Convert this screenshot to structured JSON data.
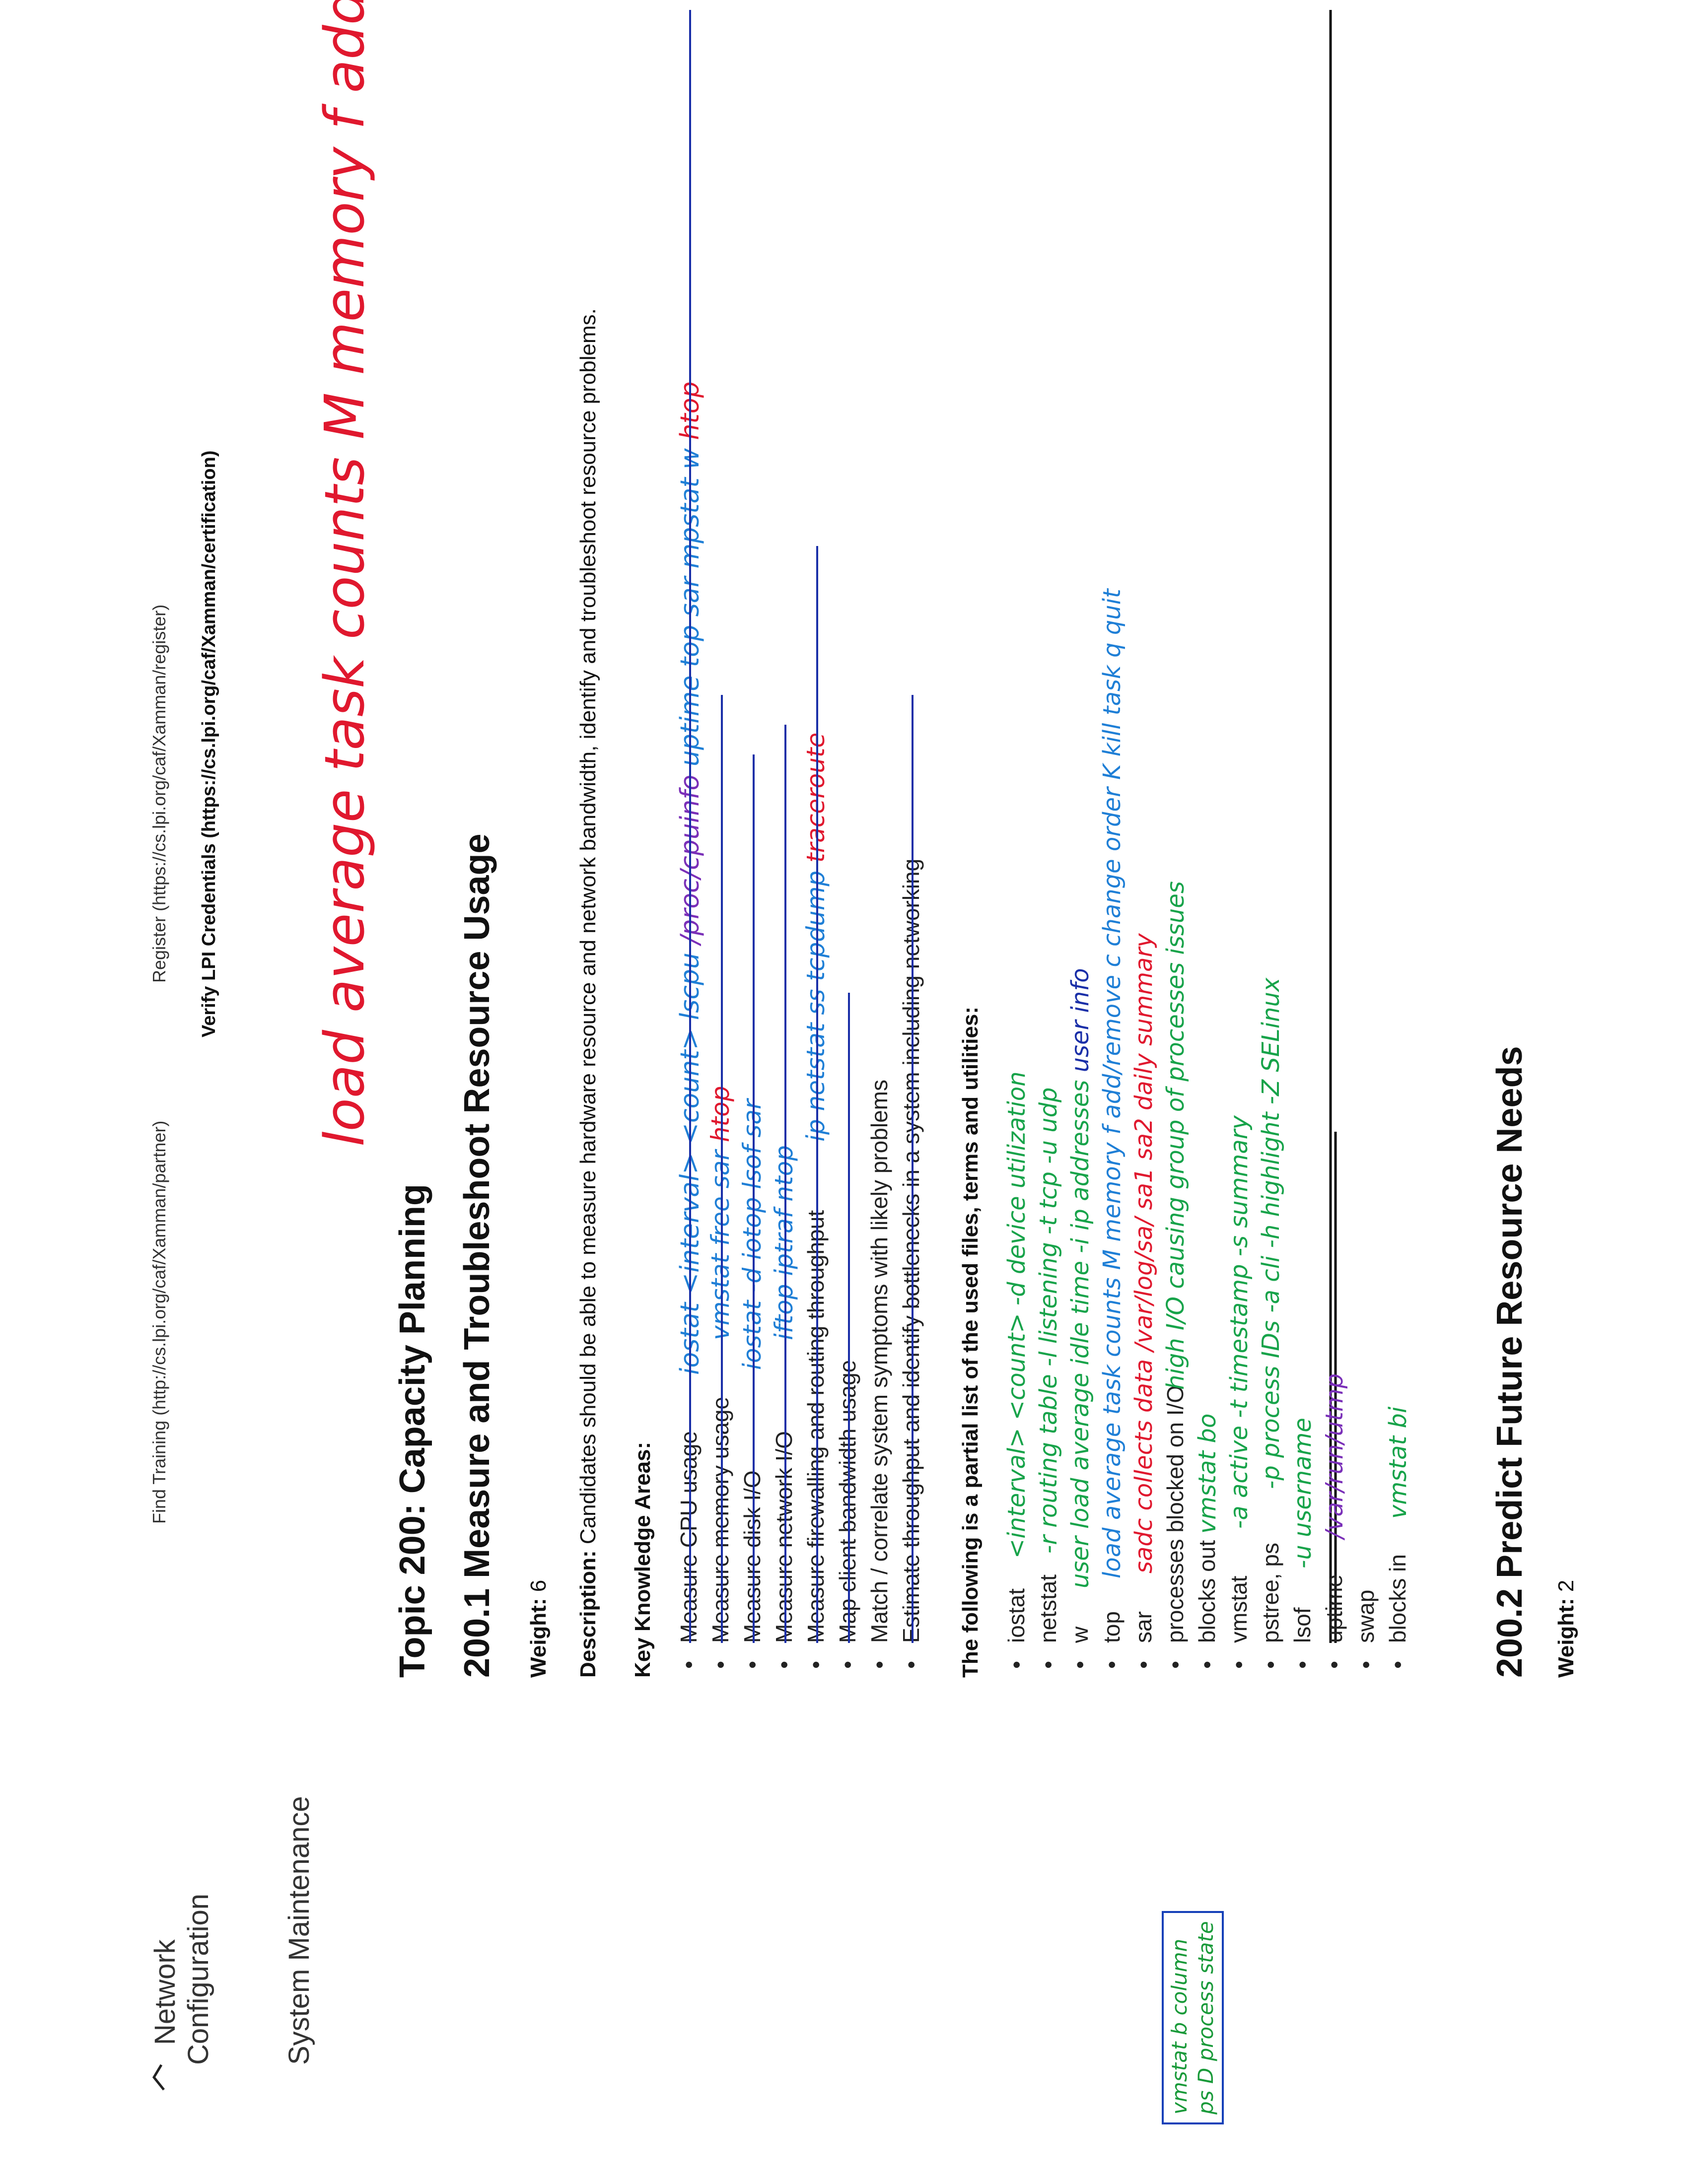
{
  "header": {
    "nav_network": "Network",
    "nav_configuration": "Configuration",
    "nav_system_maintenance": "System Maintenance",
    "find_training": "Find Training (http://cs.lpi.org/caf/Xamman/partner)",
    "register": "Register (https://cs.lpi.org/caf/Xamman/register)",
    "verify": "Verify LPI Credentials (https://cs.lpi.org/caf/Xamman/certification)"
  },
  "topic": {
    "title": "Topic 200: Capacity Planning",
    "subtitle": "200.1 Measure and Troubleshoot Resource Usage",
    "weight_label": "Weight:",
    "weight_value": "6",
    "description_label": "Description:",
    "description_text": "Candidates should be able to measure hardware resource and network bandwidth, identify and troubleshoot resource problems."
  },
  "key_areas": {
    "heading": "Key Knowledge Areas:",
    "items": [
      "Measure CPU usage",
      "Measure memory usage",
      "Measure disk I/O",
      "Measure network I/O",
      "Measure firewalling and routing throughput",
      "Map client bandwidth usage",
      "Match / correlate system symptoms with likely problems",
      "Estimate throughput and identify bottlenecks in a system including networking"
    ]
  },
  "files": {
    "heading": "The following is a partial list of the used files, terms and utilities:",
    "items": [
      "iostat",
      "netstat",
      "w",
      "top",
      "sar",
      "processes blocked on I/O",
      "blocks out",
      "vmstat",
      "pstree, ps",
      "lsof",
      "uptime",
      "swap",
      "blocks in"
    ]
  },
  "next_section": {
    "title": "200.2 Predict Future Resource Needs",
    "weight_label": "Weight:",
    "weight_value": "2"
  },
  "handwriting": {
    "top_note": "load average task counts M memory f add/remove c change order K kill task q quit",
    "cpu_row": [
      "iostat <interval> <count>",
      "lscpu",
      "/proc/cpuinfo",
      "uptime",
      "top",
      "sar",
      "mpstat",
      "w",
      "htop"
    ],
    "memory_row": [
      "vmstat",
      "free",
      "sar",
      "htop"
    ],
    "disk_row": [
      "iostat -d",
      "iotop",
      "lsof",
      "sar"
    ],
    "network_row": [
      "iftop",
      "iptraf",
      "ntop"
    ],
    "firewall_row": [
      "ip",
      "netstat",
      "ss",
      "tcpdump",
      "traceroute"
    ],
    "iostat_note": "<interval> <count> -d device utilization",
    "netstat_note": "-r routing table -l listening -t tcp -u udp",
    "w_note": "user load average idle time -i ip addresses",
    "w_note2": "user info",
    "sar_note": "sadc collects data /var/log/sa/ sa1 sa2 daily summary",
    "processes_note": "high I/O causing group of processes issues",
    "blocks_out_note": "vmstat bo",
    "vmstat_note": "-a active -t timestamp -s summary",
    "pstree_note": "-p process IDs -a cli -h highlight -Z SELinux",
    "lsof_note": "-u username",
    "uptime_note": "/var/run/utmp",
    "blocks_in_note": "vmstat bi",
    "side_note_line1": "vmstat b column",
    "side_note_line2": "ps D process state"
  },
  "colors": {
    "ink_blue": "#1f7fd6",
    "ink_navy": "#1a2fa8",
    "ink_green": "#17a34a",
    "ink_red": "#e0182e",
    "ink_purple": "#7a2fb8",
    "ink_black": "#111111"
  }
}
